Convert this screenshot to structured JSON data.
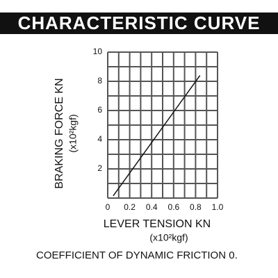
{
  "chart_data": {
    "type": "line",
    "title": "CHARACTERISTIC CURVE",
    "y_label": "BRAKING FORCE KN",
    "y_unit": "(x10²kgf)",
    "x_label": "LEVER TENSION KN",
    "x_unit": "(x10²kgf)",
    "note": "COEFFICIENT OF DYNAMIC FRICTION 0.",
    "xlim": [
      0,
      1.0
    ],
    "ylim": [
      0,
      10
    ],
    "xticks": [
      0,
      0.2,
      0.4,
      0.6,
      0.8,
      {
        "value": 1.0,
        "label": "1.0"
      }
    ],
    "yticks": [
      2,
      4,
      6,
      8,
      10
    ],
    "x_grid": [
      0,
      0.1,
      0.2,
      0.3,
      0.4,
      0.5,
      0.6,
      0.7,
      0.8,
      0.9,
      1.0
    ],
    "y_grid": [
      0,
      1,
      2,
      3,
      4,
      5,
      6,
      7,
      8,
      9,
      10
    ],
    "grid": true,
    "grid_color": "#555555",
    "x": [
      0.05,
      0.84
    ],
    "series": [
      {
        "color": "#111111",
        "values": [
          0.15,
          8.4
        ]
      }
    ]
  }
}
